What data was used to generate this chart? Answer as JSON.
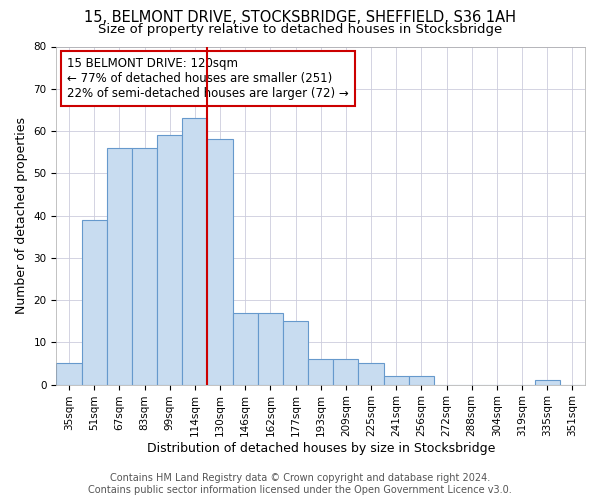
{
  "title_line1": "15, BELMONT DRIVE, STOCKSBRIDGE, SHEFFIELD, S36 1AH",
  "title_line2": "Size of property relative to detached houses in Stocksbridge",
  "xlabel": "Distribution of detached houses by size in Stocksbridge",
  "ylabel": "Number of detached properties",
  "categories": [
    "35sqm",
    "51sqm",
    "67sqm",
    "83sqm",
    "99sqm",
    "114sqm",
    "130sqm",
    "146sqm",
    "162sqm",
    "177sqm",
    "193sqm",
    "209sqm",
    "225sqm",
    "241sqm",
    "256sqm",
    "272sqm",
    "288sqm",
    "304sqm",
    "319sqm",
    "335sqm",
    "351sqm"
  ],
  "values": [
    5,
    39,
    56,
    56,
    59,
    63,
    58,
    17,
    17,
    15,
    6,
    6,
    5,
    2,
    2,
    0,
    0,
    0,
    0,
    1,
    0
  ],
  "bar_color": "#c8dcf0",
  "bar_edge_color": "#6699cc",
  "bar_width": 1.0,
  "vline_x": 5.5,
  "vline_color": "#cc0000",
  "annotation_line1": "15 BELMONT DRIVE: 120sqm",
  "annotation_line2": "← 77% of detached houses are smaller (251)",
  "annotation_line3": "22% of semi-detached houses are larger (72) →",
  "annotation_box_color": "#cc0000",
  "annotation_box_bg": "#ffffff",
  "ylim": [
    0,
    80
  ],
  "yticks": [
    0,
    10,
    20,
    30,
    40,
    50,
    60,
    70,
    80
  ],
  "footer_line1": "Contains HM Land Registry data © Crown copyright and database right 2024.",
  "footer_line2": "Contains public sector information licensed under the Open Government Licence v3.0.",
  "background_color": "#ffffff",
  "plot_bg_color": "#ffffff",
  "grid_color": "#ccccdd",
  "title_fontsize": 10.5,
  "subtitle_fontsize": 9.5,
  "axis_label_fontsize": 9,
  "tick_fontsize": 7.5,
  "footer_fontsize": 7,
  "annotation_fontsize": 8.5
}
